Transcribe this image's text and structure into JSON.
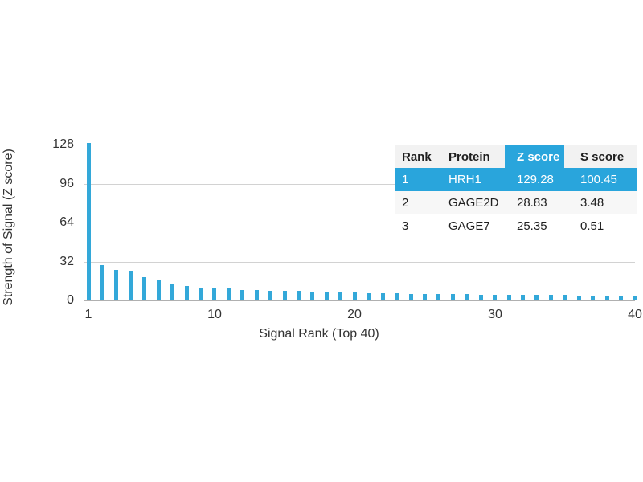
{
  "figure": {
    "background": "#ffffff",
    "text_color": "#333333",
    "grid_color": "#d2d2d2",
    "baseline_color": "#b0b0b0",
    "bar_color": "#33a8d9",
    "highlight_color": "#29a5dc"
  },
  "chart_data": {
    "type": "bar",
    "title": "",
    "xlabel": "Signal Rank (Top 40)",
    "ylabel": "Strength of Signal (Z score)",
    "x": [
      1,
      2,
      3,
      4,
      5,
      6,
      7,
      8,
      9,
      10,
      11,
      12,
      13,
      14,
      15,
      16,
      17,
      18,
      19,
      20,
      21,
      22,
      23,
      24,
      25,
      26,
      27,
      28,
      29,
      30,
      31,
      32,
      33,
      34,
      35,
      36,
      37,
      38,
      39,
      40
    ],
    "values": [
      129.28,
      28.83,
      25.35,
      24.2,
      18.9,
      17.2,
      13.5,
      12.1,
      10.4,
      10.0,
      9.8,
      8.7,
      8.3,
      8.1,
      7.9,
      7.7,
      7.4,
      7.1,
      6.8,
      6.5,
      6.2,
      6.0,
      5.8,
      5.6,
      5.4,
      5.2,
      5.1,
      5.0,
      4.9,
      4.8,
      4.7,
      4.6,
      4.5,
      4.4,
      4.3,
      4.2,
      4.1,
      4.0,
      3.9,
      3.8
    ],
    "ylim": [
      0,
      128
    ],
    "yticks": [
      0,
      32,
      64,
      96,
      128
    ],
    "xticks": [
      1,
      10,
      20,
      30,
      40
    ],
    "grid": true,
    "legend": "none"
  },
  "table": {
    "headers": [
      "Rank",
      "Protein",
      "Z score",
      "S score"
    ],
    "highlighted_column": "Z score",
    "rows": [
      {
        "rank": "1",
        "protein": "HRH1",
        "z_score": "129.28",
        "s_score": "100.45",
        "highlighted": true
      },
      {
        "rank": "2",
        "protein": "GAGE2D",
        "z_score": "28.83",
        "s_score": "3.48",
        "highlighted": false
      },
      {
        "rank": "3",
        "protein": "GAGE7",
        "z_score": "25.35",
        "s_score": "0.51",
        "highlighted": false
      }
    ]
  }
}
